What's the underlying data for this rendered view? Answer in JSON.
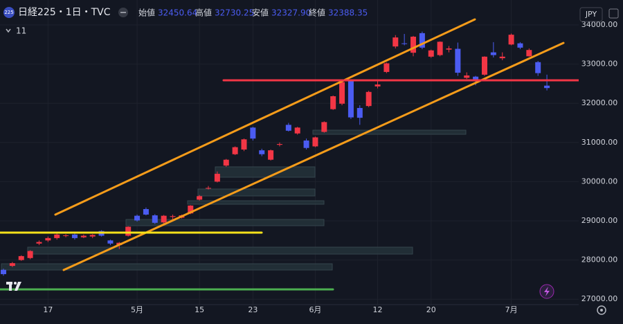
{
  "header": {
    "logo": "225",
    "title": "日経225・1日・TVC",
    "ohlc": [
      {
        "label": "始値",
        "value": "32450.64"
      },
      {
        "label": "高値",
        "value": "32730.25"
      },
      {
        "label": "安値",
        "value": "32327.90"
      },
      {
        "label": "終値",
        "value": "32388.35"
      }
    ],
    "indicator_count": "11",
    "currency": "JPY"
  },
  "chart_data": {
    "type": "candlestick",
    "categories": [
      null,
      null,
      null,
      null,
      null,
      "17",
      null,
      null,
      null,
      null,
      null,
      null,
      null,
      null,
      null,
      "5月",
      null,
      null,
      null,
      null,
      null,
      null,
      "15",
      null,
      null,
      null,
      null,
      null,
      "23",
      null,
      null,
      null,
      null,
      null,
      null,
      "6月",
      null,
      null,
      null,
      null,
      null,
      null,
      "12",
      null,
      null,
      null,
      null,
      null,
      "20",
      null,
      null,
      null,
      null,
      null,
      null,
      null,
      null,
      "7月",
      null,
      null,
      null,
      null
    ],
    "open": [
      27750,
      27850,
      28000,
      28050,
      28420,
      28500,
      28560,
      28620,
      28650,
      28580,
      28600,
      28740,
      28500,
      28380,
      28620,
      29130,
      29300,
      29140,
      28960,
      29100,
      29080,
      29190,
      29540,
      29830,
      30000,
      30410,
      30700,
      30820,
      31380,
      30800,
      30560,
      30940,
      31450,
      31230,
      31050,
      30900,
      31270,
      31850,
      31990,
      32560,
      31880,
      31930,
      32430,
      32800,
      33450,
      33530,
      33290,
      33790,
      33190,
      33230,
      33370,
      33390,
      32650,
      32680,
      32730,
      33300,
      33150,
      33500,
      33530,
      33200,
      33050,
      32450.64
    ],
    "high": [
      27780,
      27950,
      28120,
      28250,
      28500,
      28600,
      28680,
      28660,
      28680,
      28650,
      28660,
      28760,
      28520,
      28460,
      28860,
      29160,
      29340,
      29170,
      29150,
      29160,
      29160,
      29400,
      29660,
      29890,
      30260,
      30580,
      30900,
      31100,
      31400,
      30840,
      30820,
      31000,
      31500,
      31400,
      31100,
      31150,
      31540,
      32200,
      32600,
      32580,
      31950,
      32320,
      32560,
      33040,
      33740,
      33770,
      33720,
      33830,
      33370,
      33580,
      33460,
      33550,
      32790,
      32700,
      33200,
      33560,
      33300,
      33780,
      33560,
      33400,
      33080,
      32730.25
    ],
    "low": [
      27600,
      27820,
      27980,
      28020,
      28380,
      28460,
      28520,
      28580,
      28520,
      28560,
      28560,
      28600,
      28380,
      28280,
      28600,
      28980,
      29140,
      28920,
      28900,
      29040,
      29060,
      29170,
      29520,
      29800,
      29980,
      30380,
      30680,
      30780,
      31050,
      30650,
      30540,
      30900,
      31280,
      31200,
      30820,
      30880,
      31250,
      31830,
      31950,
      31600,
      31450,
      31900,
      32380,
      32770,
      33400,
      33480,
      33200,
      33380,
      33160,
      33200,
      33300,
      32700,
      32620,
      32460,
      32700,
      33170,
      33100,
      33480,
      33380,
      33190,
      32700,
      32327.9
    ],
    "close": [
      27640,
      27920,
      28100,
      28230,
      28460,
      28560,
      28650,
      28630,
      28560,
      28620,
      28640,
      28620,
      28420,
      28440,
      28850,
      29010,
      29160,
      28950,
      29130,
      29120,
      29140,
      29390,
      29630,
      29840,
      30200,
      30560,
      30880,
      31080,
      31100,
      30700,
      30800,
      30960,
      31300,
      31380,
      30860,
      31130,
      31520,
      32180,
      32540,
      31640,
      31630,
      32290,
      32480,
      33020,
      33680,
      33520,
      33700,
      33420,
      33350,
      33570,
      33400,
      32780,
      32710,
      32580,
      33190,
      33230,
      33190,
      33750,
      33420,
      33360,
      32770,
      32388.35
    ],
    "up_color": "#f23645",
    "down_color": "#4b5cf2",
    "ylim": [
      26862,
      34636
    ],
    "yticks": [
      {
        "value": 27000,
        "label": "27000.00"
      },
      {
        "value": 28000,
        "label": "28000.00"
      },
      {
        "value": 29000,
        "label": "29000.00"
      },
      {
        "value": 30000,
        "label": "30000.00"
      },
      {
        "value": 31000,
        "label": "31000.00"
      },
      {
        "value": 32000,
        "label": "32000.00"
      },
      {
        "value": 33000,
        "label": "33000.00"
      },
      {
        "value": 34000,
        "label": "34000.00"
      }
    ],
    "grid": true
  }
}
